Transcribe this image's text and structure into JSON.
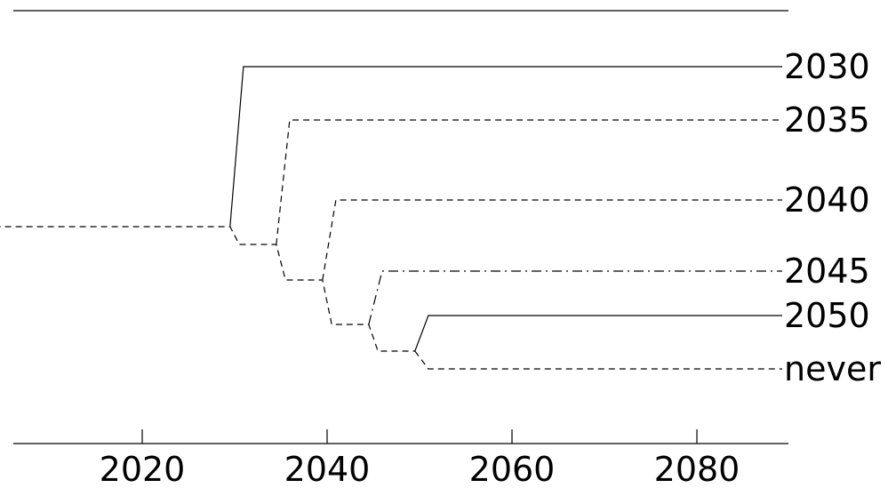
{
  "chart_data": {
    "type": "line",
    "title": "",
    "xlabel": "",
    "ylabel": "",
    "xlim": [
      2004,
      2090
    ],
    "x_ticks": [
      2020,
      2040,
      2060,
      2080
    ],
    "line_color": "#000000",
    "baseline": {
      "value": 0,
      "x_start": 2004,
      "x_end": 2030,
      "style": "dashed"
    },
    "series": [
      {
        "name": "2030",
        "split_year": 2030,
        "final_value": 1.8,
        "style": "solid"
      },
      {
        "name": "2035",
        "split_year": 2035,
        "final_value": 1.2,
        "style": "dashed"
      },
      {
        "name": "2040",
        "split_year": 2040,
        "final_value": 0.3,
        "style": "dashed"
      },
      {
        "name": "2045",
        "split_year": 2045,
        "final_value": -0.5,
        "style": "dashdot"
      },
      {
        "name": "2050",
        "split_year": 2050,
        "final_value": -1.0,
        "style": "solid"
      },
      {
        "name": "never",
        "split_year": 2050,
        "final_value": -1.6,
        "style": "dashed"
      }
    ],
    "trunk_levels": [
      {
        "after_year": 2030,
        "value": -0.2
      },
      {
        "after_year": 2035,
        "value": -0.6
      },
      {
        "after_year": 2040,
        "value": -1.1
      },
      {
        "after_year": 2045,
        "value": -1.4
      }
    ],
    "grid": false,
    "legend": "none"
  }
}
